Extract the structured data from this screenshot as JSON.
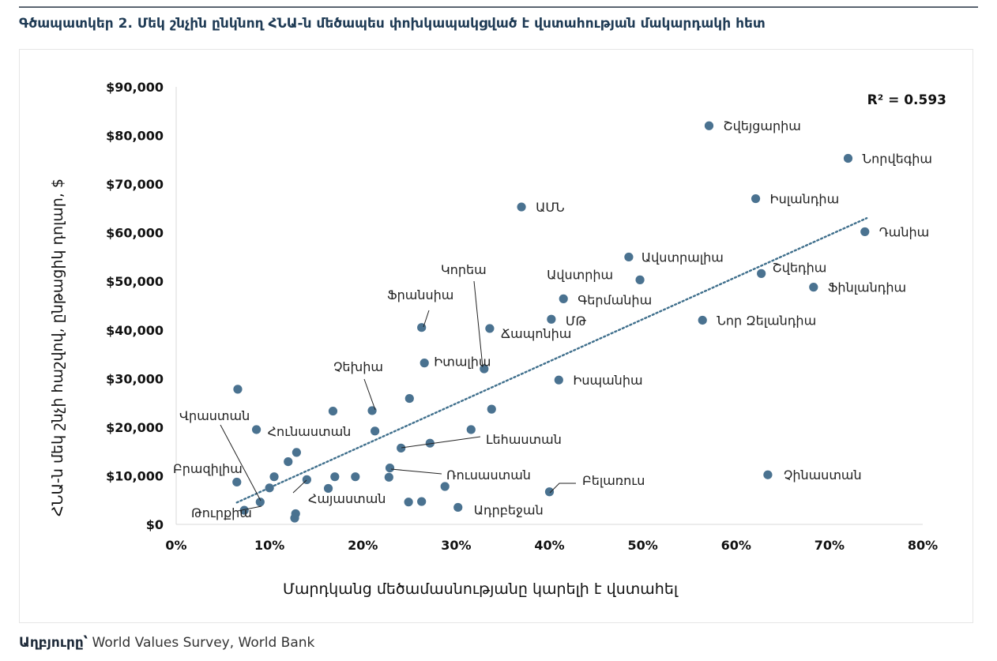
{
  "figure": {
    "title": "Գծապատկեր 2. Մեկ շնչին ընկնող ՀՆԱ-ն մեծապես փոխկապակցված է վստահության մակարդակի հետ",
    "source_label": "Աղբյուրը՝",
    "source_text": " World Values Survey, World Bank"
  },
  "colors": {
    "point": "#4a7290",
    "trendline": "#3f6f8c",
    "axis": "#d9d9d9",
    "text": "#111111"
  },
  "chart_data": {
    "type": "scatter",
    "xlabel": "Մարդկանց մեծամասնությանը կարելի է վստահել",
    "ylabel": "ՀՆԱ-ն մեկ շնչի հաշվով, ընթացիկ դոլար, $",
    "xlim": [
      0,
      0.8
    ],
    "ylim": [
      0,
      90000
    ],
    "x_ticks": [
      0,
      0.1,
      0.2,
      0.3,
      0.4,
      0.5,
      0.6,
      0.7,
      0.8
    ],
    "x_tick_labels": [
      "0%",
      "10%",
      "20%",
      "30%",
      "40%",
      "50%",
      "60%",
      "70%",
      "80%"
    ],
    "y_ticks": [
      0,
      10000,
      20000,
      30000,
      40000,
      50000,
      60000,
      70000,
      80000,
      90000
    ],
    "y_tick_labels": [
      "$0",
      "$10,000",
      "$20,000",
      "$30,000",
      "$40,000",
      "$50,000",
      "$60,000",
      "$70,000",
      "$80,000",
      "$90,000"
    ],
    "grid": false,
    "r2_label": "R² = 0.593",
    "trendline": {
      "x": [
        0.065,
        0.74
      ],
      "y": [
        4500,
        63000
      ]
    },
    "points": [
      {
        "label": "Շվեյցարիա",
        "x": 0.571,
        "y": 82000
      },
      {
        "label": "Նորվեգիա",
        "x": 0.72,
        "y": 75300
      },
      {
        "label": "Իսլանդիա",
        "x": 0.621,
        "y": 67000
      },
      {
        "label": "ԱՄՆ",
        "x": 0.37,
        "y": 65300
      },
      {
        "label": "Դանիա",
        "x": 0.738,
        "y": 60200
      },
      {
        "label": "Ավստրալիա",
        "x": 0.485,
        "y": 55000
      },
      {
        "label": "Շվեդիա",
        "x": 0.627,
        "y": 51600
      },
      {
        "label": "Ավստրիա",
        "x": 0.497,
        "y": 50300
      },
      {
        "label": "Ֆինլանդիա",
        "x": 0.683,
        "y": 48800
      },
      {
        "label": "Գերմանիա",
        "x": 0.415,
        "y": 46400
      },
      {
        "label": "ՄԹ",
        "x": 0.402,
        "y": 42200
      },
      {
        "label": "Նոր Զելանդիա",
        "x": 0.564,
        "y": 42000
      },
      {
        "label": "Ֆրանսիա",
        "x": 0.263,
        "y": 40500
      },
      {
        "label": "Ճապոնիա",
        "x": 0.336,
        "y": 40300
      },
      {
        "label": "Կորեա",
        "x": 0.33,
        "y": 32000
      },
      {
        "label": "Իտալիա",
        "x": 0.266,
        "y": 33200
      },
      {
        "label": "Իսպանիա",
        "x": 0.41,
        "y": 29700
      },
      {
        "label": "Չեխիա",
        "x": 0.21,
        "y": 23400
      },
      {
        "label": "Հունաստան",
        "x": 0.213,
        "y": 19200
      },
      {
        "label": "Լեհաստան",
        "x": 0.316,
        "y": 19500
      },
      {
        "label": "Ռուսաստան",
        "x": 0.229,
        "y": 11600
      },
      {
        "label": "Բելառուս",
        "x": 0.4,
        "y": 6700
      },
      {
        "label": "Չինաստան",
        "x": 0.634,
        "y": 10200
      },
      {
        "label": "Ադրբեջան",
        "x": 0.302,
        "y": 3500
      },
      {
        "label": "Հայաստան",
        "x": 0.14,
        "y": 9200
      },
      {
        "label": "Վրաստան",
        "x": 0.09,
        "y": 4600
      },
      {
        "label": "Բրազիլիա",
        "x": 0.065,
        "y": 8700
      },
      {
        "label": "Թուրքիա",
        "x": 0.073,
        "y": 2900
      },
      {
        "label": "",
        "x": 0.066,
        "y": 27800
      },
      {
        "label": "",
        "x": 0.168,
        "y": 23300
      },
      {
        "label": "",
        "x": 0.25,
        "y": 25900
      },
      {
        "label": "",
        "x": 0.338,
        "y": 23700
      },
      {
        "label": "",
        "x": 0.086,
        "y": 19500
      },
      {
        "label": "",
        "x": 0.241,
        "y": 15700
      },
      {
        "label": "",
        "x": 0.272,
        "y": 16700
      },
      {
        "label": "",
        "x": 0.129,
        "y": 14800
      },
      {
        "label": "",
        "x": 0.12,
        "y": 12900
      },
      {
        "label": "",
        "x": 0.105,
        "y": 9800
      },
      {
        "label": "",
        "x": 0.17,
        "y": 9800
      },
      {
        "label": "",
        "x": 0.192,
        "y": 9800
      },
      {
        "label": "",
        "x": 0.228,
        "y": 9700
      },
      {
        "label": "",
        "x": 0.1,
        "y": 7500
      },
      {
        "label": "",
        "x": 0.163,
        "y": 7400
      },
      {
        "label": "",
        "x": 0.288,
        "y": 7800
      },
      {
        "label": "",
        "x": 0.249,
        "y": 4600
      },
      {
        "label": "",
        "x": 0.263,
        "y": 4700
      },
      {
        "label": "",
        "x": 0.128,
        "y": 2200
      },
      {
        "label": "",
        "x": 0.127,
        "y": 1300
      }
    ]
  }
}
